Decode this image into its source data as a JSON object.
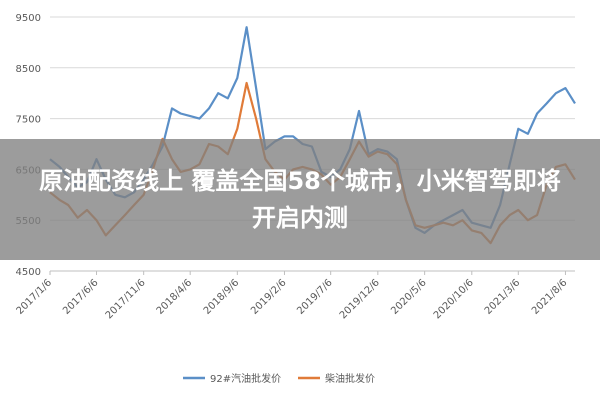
{
  "chart_data": {
    "type": "line",
    "title": "",
    "xlabel": "",
    "ylabel": "",
    "ylim": [
      4500,
      9500
    ],
    "yticks": [
      4500,
      5500,
      6500,
      7500,
      8500,
      9500
    ],
    "x_ticks": [
      "2017/1/6",
      "2017/6/6",
      "2017/11/6",
      "2018/4/6",
      "2018/9/6",
      "2019/2/6",
      "2019/7/6",
      "2019/12/6",
      "2020/5/6",
      "2020/10/6",
      "2021/3/6",
      "2021/8/6"
    ],
    "grid": "horizontal",
    "legend": "bottom",
    "series": [
      {
        "name": "92#汽油批发价",
        "color": "#5b8fc7",
        "x": [
          "2017/1/6",
          "2017/2/6",
          "2017/3/6",
          "2017/4/6",
          "2017/5/6",
          "2017/6/6",
          "2017/7/6",
          "2017/8/6",
          "2017/9/6",
          "2017/10/6",
          "2017/11/6",
          "2017/12/6",
          "2018/1/6",
          "2018/2/6",
          "2018/3/6",
          "2018/4/6",
          "2018/5/6",
          "2018/6/6",
          "2018/7/6",
          "2018/8/6",
          "2018/9/6",
          "2018/10/6",
          "2018/11/6",
          "2018/12/6",
          "2019/1/6",
          "2019/2/6",
          "2019/3/6",
          "2019/4/6",
          "2019/5/6",
          "2019/6/6",
          "2019/7/6",
          "2019/8/6",
          "2019/9/6",
          "2019/10/6",
          "2019/11/6",
          "2019/12/6",
          "2020/1/6",
          "2020/2/6",
          "2020/3/6",
          "2020/4/6",
          "2020/5/6",
          "2020/6/6",
          "2020/7/6",
          "2020/8/6",
          "2020/9/6",
          "2020/10/6",
          "2020/11/6",
          "2020/12/6",
          "2021/1/6",
          "2021/2/6",
          "2021/3/6",
          "2021/4/6",
          "2021/5/6",
          "2021/6/6",
          "2021/7/6",
          "2021/8/6",
          "2021/9/6"
        ],
        "values": [
          6700,
          6550,
          6350,
          6150,
          6250,
          6700,
          6300,
          6000,
          5950,
          6050,
          6300,
          6600,
          6950,
          7700,
          7600,
          7550,
          7500,
          7700,
          8000,
          7900,
          8300,
          9300,
          8100,
          6900,
          7050,
          7150,
          7150,
          7000,
          6950,
          6450,
          6350,
          6500,
          6900,
          7650,
          6800,
          6900,
          6850,
          6700,
          5900,
          5350,
          5250,
          5400,
          5500,
          5600,
          5700,
          5450,
          5400,
          5350,
          5800,
          6600,
          7300,
          7200,
          7600,
          7800,
          8000,
          8100,
          7800
        ]
      },
      {
        "name": "柴油批发价",
        "color": "#e07b39",
        "x": [
          "2017/1/6",
          "2017/2/6",
          "2017/3/6",
          "2017/4/6",
          "2017/5/6",
          "2017/6/6",
          "2017/7/6",
          "2017/8/6",
          "2017/9/6",
          "2017/10/6",
          "2017/11/6",
          "2017/12/6",
          "2018/1/6",
          "2018/2/6",
          "2018/3/6",
          "2018/4/6",
          "2018/5/6",
          "2018/6/6",
          "2018/7/6",
          "2018/8/6",
          "2018/9/6",
          "2018/10/6",
          "2018/11/6",
          "2018/12/6",
          "2019/1/6",
          "2019/2/6",
          "2019/3/6",
          "2019/4/6",
          "2019/5/6",
          "2019/6/6",
          "2019/7/6",
          "2019/8/6",
          "2019/9/6",
          "2019/10/6",
          "2019/11/6",
          "2019/12/6",
          "2020/1/6",
          "2020/2/6",
          "2020/3/6",
          "2020/4/6",
          "2020/5/6",
          "2020/6/6",
          "2020/7/6",
          "2020/8/6",
          "2020/9/6",
          "2020/10/6",
          "2020/11/6",
          "2020/12/6",
          "2021/1/6",
          "2021/2/6",
          "2021/3/6",
          "2021/4/6",
          "2021/5/6",
          "2021/6/6",
          "2021/7/6",
          "2021/8/6",
          "2021/9/6"
        ],
        "values": [
          6050,
          5900,
          5800,
          5550,
          5700,
          5500,
          5200,
          5400,
          5600,
          5800,
          6000,
          6500,
          7100,
          6700,
          6450,
          6500,
          6600,
          7000,
          6950,
          6800,
          7300,
          8200,
          7500,
          6700,
          6450,
          6300,
          6500,
          6550,
          6500,
          6400,
          6200,
          6350,
          6700,
          7050,
          6750,
          6850,
          6800,
          6600,
          5900,
          5400,
          5350,
          5400,
          5450,
          5400,
          5500,
          5300,
          5250,
          5050,
          5400,
          5600,
          5700,
          5500,
          5600,
          6200,
          6550,
          6600,
          6300
        ]
      }
    ]
  },
  "overlay": {
    "line1": "原油配资线上 覆盖全国58个城市，小米智驾即将",
    "line2": "开启内测"
  }
}
